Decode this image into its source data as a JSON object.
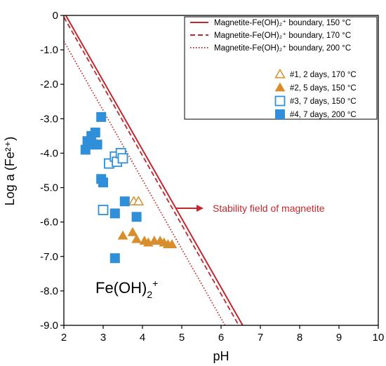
{
  "chart_data": {
    "type": "scatter",
    "xlabel": "pH",
    "ylabel": "Log a (Fe²⁺)",
    "xlim": [
      2,
      10
    ],
    "ylim": [
      -9.0,
      0
    ],
    "x_ticks": [
      "2",
      "3",
      "4",
      "5",
      "6",
      "7",
      "8",
      "9",
      "10"
    ],
    "y_ticks": [
      "0",
      "-1.0",
      "-2.0",
      "-3.0",
      "-4.0",
      "-5.0",
      "-6.0",
      "-7.0",
      "-8.0",
      "-9.0"
    ],
    "colors": {
      "line": "#c0282d",
      "orange": "#d98e2e",
      "blue": "#2f8fd8"
    },
    "lines": [
      {
        "name": "Magnetite-Fe(OH)₂⁺ boundary, 150 °C",
        "style": "solid",
        "points": [
          [
            2.05,
            0
          ],
          [
            6.55,
            -9.0
          ]
        ]
      },
      {
        "name": "Magnetite-Fe(OH)₂⁺ boundary, 170 °C",
        "style": "dashed",
        "points": [
          [
            2.0,
            -0.05
          ],
          [
            6.45,
            -9.0
          ]
        ]
      },
      {
        "name": "Magnetite-Fe(OH)₂⁺ boundary, 200 °C",
        "style": "dotted",
        "points": [
          [
            2.0,
            -0.75
          ],
          [
            6.1,
            -9.0
          ]
        ]
      }
    ],
    "series": [
      {
        "name": "#1, 2 days, 170 °C",
        "marker": "triangle-open",
        "color": "#d98e2e",
        "points": [
          [
            3.78,
            -5.4
          ],
          [
            3.9,
            -5.4
          ]
        ]
      },
      {
        "name": "#2, 5 days, 150 °C",
        "marker": "triangle-filled",
        "color": "#d98e2e",
        "points": [
          [
            3.5,
            -6.4
          ],
          [
            3.75,
            -6.3
          ],
          [
            3.85,
            -6.5
          ],
          [
            4.05,
            -6.55
          ],
          [
            4.15,
            -6.6
          ],
          [
            4.3,
            -6.55
          ],
          [
            4.45,
            -6.55
          ],
          [
            4.55,
            -6.6
          ],
          [
            4.65,
            -6.65
          ],
          [
            4.75,
            -6.65
          ]
        ]
      },
      {
        "name": "#3, 7 days, 150 °C",
        "marker": "square-open",
        "color": "#2f8fd8",
        "points": [
          [
            3.0,
            -5.65
          ],
          [
            3.15,
            -4.3
          ],
          [
            3.3,
            -4.1
          ],
          [
            3.35,
            -4.25
          ],
          [
            3.45,
            -4.0
          ],
          [
            3.5,
            -4.15
          ]
        ]
      },
      {
        "name": "#4, 7 days, 200 °C",
        "marker": "square-filled",
        "color": "#2f8fd8",
        "points": [
          [
            2.55,
            -3.9
          ],
          [
            2.6,
            -3.65
          ],
          [
            2.7,
            -3.5
          ],
          [
            2.75,
            -3.75
          ],
          [
            2.8,
            -3.4
          ],
          [
            2.85,
            -3.75
          ],
          [
            2.95,
            -2.95
          ],
          [
            2.95,
            -4.75
          ],
          [
            3.0,
            -4.85
          ],
          [
            3.3,
            -5.75
          ],
          [
            3.55,
            -5.4
          ],
          [
            3.85,
            -5.85
          ],
          [
            3.3,
            -7.05
          ]
        ]
      }
    ],
    "legend_position": "top-right",
    "annotations": [
      {
        "text": "Stability field of magnetite",
        "color": "#c0282d",
        "arrow": true
      },
      {
        "text_main": "Fe(OH)",
        "text_sub": "2",
        "text_sup": "+"
      }
    ]
  }
}
